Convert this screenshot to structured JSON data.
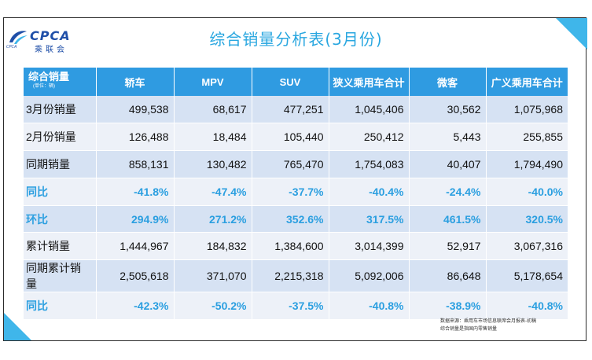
{
  "title": "综合销量分析表(3月份)",
  "logo": {
    "text": "CPCA",
    "subtitle": "乘联会",
    "small": "CPCA"
  },
  "columns": [
    "轿车",
    "MPV",
    "SUV",
    "狭义乘用车合计",
    "微客",
    "广义乘用车合计"
  ],
  "header_first": {
    "label": "综合销量",
    "unit": "(单位：辆)"
  },
  "rows": [
    {
      "label": "3月份销量",
      "values": [
        "499,538",
        "68,617",
        "477,251",
        "1,045,406",
        "30,562",
        "1,075,968"
      ]
    },
    {
      "label": "2月份销量",
      "values": [
        "126,488",
        "18,484",
        "105,440",
        "250,412",
        "5,443",
        "255,855"
      ]
    },
    {
      "label": "同期销量",
      "values": [
        "858,131",
        "130,482",
        "765,470",
        "1,754,083",
        "40,407",
        "1,794,490"
      ]
    },
    {
      "label": "同比",
      "values": [
        "-41.8%",
        "-47.4%",
        "-37.7%",
        "-40.4%",
        "-24.4%",
        "-40.0%"
      ]
    },
    {
      "label": "环比",
      "values": [
        "294.9%",
        "271.2%",
        "352.6%",
        "317.5%",
        "461.5%",
        "320.5%"
      ]
    },
    {
      "label": "累计销量",
      "values": [
        "1,444,967",
        "184,832",
        "1,384,600",
        "3,014,399",
        "52,917",
        "3,067,316"
      ]
    },
    {
      "label": "同期累计销量",
      "values": [
        "2,505,618",
        "371,070",
        "2,215,318",
        "5,092,006",
        "86,648",
        "5,178,654"
      ]
    },
    {
      "label": "同比",
      "values": [
        "-42.3%",
        "-50.2%",
        "-37.5%",
        "-40.8%",
        "-38.9%",
        "-40.8%"
      ]
    }
  ],
  "note": [
    "数据来源：乘用车市场信息联席会月报表-初稿",
    "综合销量是指国内零售销量"
  ],
  "colors": {
    "accent": "#2aa7e0",
    "header": "#2f9be1",
    "row_dark": "#d6e2f3",
    "row_light": "#edf1f8"
  }
}
